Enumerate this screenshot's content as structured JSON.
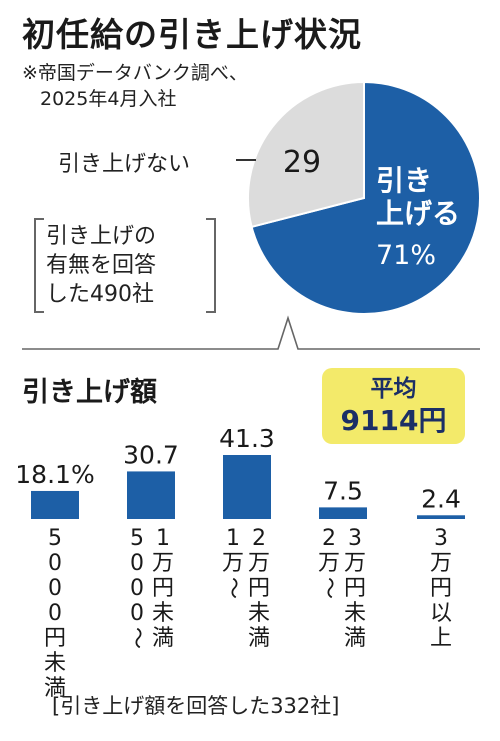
{
  "title": "初任給の引き上げ状況",
  "source": {
    "line1": "※帝国データバンク調べ、",
    "line2": "2025年4月入社"
  },
  "pie_respondents": [
    "引き上げの",
    "有無を回答",
    "した490社"
  ],
  "pie_outer_label": "引き上げない",
  "pie_inner_label": [
    "引き",
    "上げる"
  ],
  "bar_title": "引き上げ額",
  "average": {
    "label": "平均",
    "value": "9114円"
  },
  "bar_respondents": "[引き上げ額を回答した332社]",
  "colors": {
    "blue": "#1d5fa6",
    "gray": "#dcdcdc",
    "yellow": "#f3ea6a",
    "navy": "#1b2f66"
  },
  "chart_data": [
    {
      "type": "pie",
      "slices": [
        {
          "name": "引き上げる",
          "value": 71,
          "label": "71%",
          "color": "#1d5fa6"
        },
        {
          "name": "引き上げない",
          "value": 29,
          "label": "29",
          "color": "#dcdcdc"
        }
      ]
    },
    {
      "type": "bar",
      "title": "引き上げ額",
      "unit": "%",
      "categories": [
        [
          "5000円未満"
        ],
        [
          "1万円未満",
          "5000〜"
        ],
        [
          "2万円未満",
          "1万〜"
        ],
        [
          "3万円未満",
          "2万〜"
        ],
        [
          "3万円以上"
        ]
      ],
      "values": [
        18.1,
        30.7,
        41.3,
        7.5,
        2.4
      ],
      "value_labels": [
        "18.1%",
        "30.7",
        "41.3",
        "7.5",
        "2.4"
      ],
      "ylim": [
        0,
        45
      ]
    }
  ]
}
